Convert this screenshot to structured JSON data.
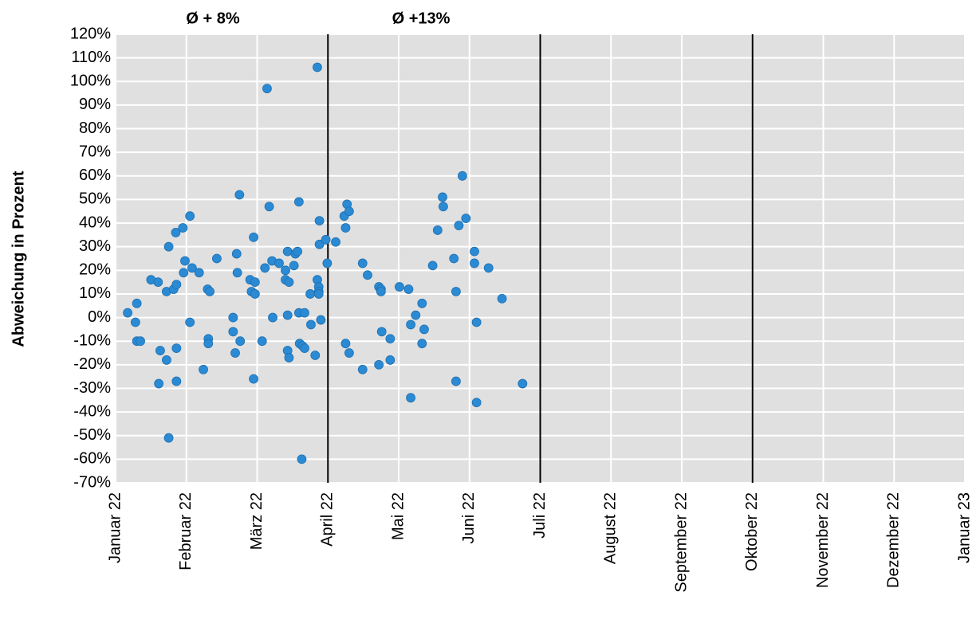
{
  "chart_data": {
    "type": "scatter",
    "y_label": "Abweichung in Prozent",
    "annotations": [
      "Ø + 8%",
      "Ø +13%"
    ],
    "color": "#2b8ad4",
    "grid": true,
    "xlim": [
      0,
      12
    ],
    "xticks": [
      {
        "value": 0,
        "label": "Januar 22"
      },
      {
        "value": 1,
        "label": "Februar 22"
      },
      {
        "value": 2,
        "label": "März 22"
      },
      {
        "value": 3,
        "label": "April 22"
      },
      {
        "value": 4,
        "label": "Mai 22"
      },
      {
        "value": 5,
        "label": "Juni 22"
      },
      {
        "value": 6,
        "label": "Juli 22"
      },
      {
        "value": 7,
        "label": "August 22"
      },
      {
        "value": 8,
        "label": "September 22"
      },
      {
        "value": 9,
        "label": "Oktober 22"
      },
      {
        "value": 10,
        "label": "November 22"
      },
      {
        "value": 11,
        "label": "Dezember 22"
      },
      {
        "value": 12,
        "label": "Januar 23"
      }
    ],
    "ylim": [
      -70,
      120
    ],
    "yticks": [
      {
        "value": -70,
        "label": "-70%"
      },
      {
        "value": -60,
        "label": "-60%"
      },
      {
        "value": -50,
        "label": "-50%"
      },
      {
        "value": -40,
        "label": "-40%"
      },
      {
        "value": -30,
        "label": "-30%"
      },
      {
        "value": -20,
        "label": "-20%"
      },
      {
        "value": -10,
        "label": "-10%"
      },
      {
        "value": 0,
        "label": "0%"
      },
      {
        "value": 10,
        "label": "10%"
      },
      {
        "value": 20,
        "label": "20%"
      },
      {
        "value": 30,
        "label": "30%"
      },
      {
        "value": 40,
        "label": "40%"
      },
      {
        "value": 50,
        "label": "50%"
      },
      {
        "value": 60,
        "label": "60%"
      },
      {
        "value": 70,
        "label": "70%"
      },
      {
        "value": 80,
        "label": "80%"
      },
      {
        "value": 90,
        "label": "90%"
      },
      {
        "value": 100,
        "label": "100%"
      },
      {
        "value": 110,
        "label": "110%"
      },
      {
        "value": 120,
        "label": "120%"
      }
    ],
    "vlines": [
      3,
      6,
      9
    ],
    "x": [
      0.17,
      0.28,
      0.3,
      0.3,
      0.35,
      0.5,
      0.6,
      0.61,
      0.63,
      0.72,
      0.72,
      0.75,
      0.75,
      0.82,
      0.86,
      0.85,
      0.86,
      0.86,
      0.95,
      0.96,
      0.98,
      1.05,
      1.05,
      1.08,
      1.18,
      1.24,
      1.3,
      1.31,
      1.31,
      1.33,
      1.43,
      1.66,
      1.66,
      1.69,
      1.71,
      1.72,
      1.75,
      1.76,
      1.9,
      1.92,
      1.95,
      1.95,
      1.97,
      1.97,
      2.07,
      2.11,
      2.14,
      2.17,
      2.21,
      2.22,
      2.31,
      2.4,
      2.4,
      2.43,
      2.43,
      2.43,
      2.45,
      2.45,
      2.52,
      2.54,
      2.57,
      2.59,
      2.59,
      2.6,
      2.63,
      2.64,
      2.67,
      2.67,
      2.75,
      2.76,
      2.82,
      2.85,
      2.85,
      2.87,
      2.87,
      2.87,
      2.88,
      2.88,
      2.9,
      2.97,
      2.99,
      3.11,
      3.23,
      3.25,
      3.25,
      3.27,
      3.3,
      3.3,
      3.49,
      3.49,
      3.56,
      3.72,
      3.72,
      3.75,
      3.75,
      3.76,
      3.88,
      3.88,
      4.01,
      4.14,
      4.17,
      4.17,
      4.24,
      4.33,
      4.33,
      4.36,
      4.48,
      4.55,
      4.62,
      4.63,
      4.78,
      4.81,
      4.81,
      4.85,
      4.9,
      4.95,
      5.07,
      5.07,
      5.1,
      5.1,
      5.27,
      5.46,
      5.75
    ],
    "values": [
      2,
      -2,
      6,
      -10,
      -10,
      16,
      15,
      -28,
      -14,
      11,
      -18,
      30,
      -51,
      12,
      14,
      36,
      -13,
      -27,
      38,
      19,
      24,
      -2,
      43,
      21,
      19,
      -22,
      12,
      -9,
      -11,
      11,
      25,
      0,
      -6,
      -15,
      27,
      19,
      52,
      -10,
      16,
      11,
      34,
      -26,
      10,
      15,
      -10,
      21,
      97,
      47,
      24,
      0,
      23,
      20,
      16,
      28,
      1,
      -14,
      15,
      -17,
      22,
      27,
      28,
      49,
      2,
      -11,
      -60,
      -12,
      2,
      -13,
      10,
      -3,
      -16,
      106,
      16,
      13,
      11,
      10,
      41,
      31,
      -1,
      33,
      23,
      32,
      43,
      38,
      -11,
      48,
      45,
      -15,
      23,
      -22,
      18,
      13,
      -20,
      12,
      11,
      -6,
      -9,
      -18,
      13,
      12,
      -3,
      -34,
      1,
      6,
      -11,
      -5,
      22,
      37,
      51,
      47,
      25,
      11,
      -27,
      39,
      60,
      42,
      28,
      23,
      -2,
      -36,
      21,
      8,
      -28
    ]
  }
}
